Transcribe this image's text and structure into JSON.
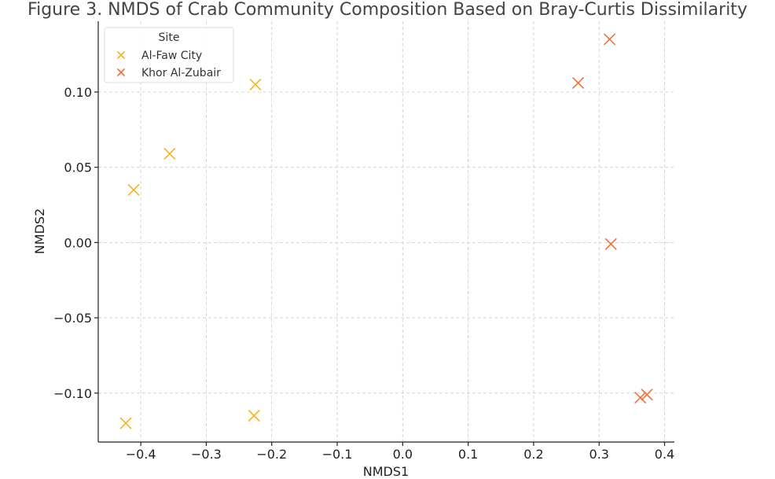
{
  "colors": {
    "al_faw": "#f5b31e",
    "khor": "#e8743b",
    "grid": "#cccccc",
    "axis": "#222222"
  },
  "chart_data": {
    "type": "scatter",
    "title": "Figure 3. NMDS of Crab Community Composition Based on Bray-Curtis Dissimilarity",
    "xlabel": "NMDS1",
    "ylabel": "NMDS2",
    "xlim": [
      -0.465,
      0.415
    ],
    "ylim": [
      -0.1325,
      0.147
    ],
    "xticks": [
      -0.4,
      -0.3,
      -0.2,
      -0.1,
      0.0,
      0.1,
      0.2,
      0.3,
      0.4
    ],
    "xtick_labels": [
      "−0.4",
      "−0.3",
      "−0.2",
      "−0.1",
      "0.0",
      "0.1",
      "0.2",
      "0.3",
      "0.4"
    ],
    "yticks": [
      -0.1,
      -0.05,
      0.0,
      0.05,
      0.1
    ],
    "ytick_labels": [
      "−0.10",
      "−0.05",
      "0.00",
      "0.05",
      "0.10"
    ],
    "grid": true,
    "marker": "x",
    "legend": {
      "title": "Site",
      "placement": "top-left"
    },
    "series": [
      {
        "name": "Al-Faw City",
        "color": "#f5b31e",
        "points": [
          {
            "x": -0.225,
            "y": 0.105
          },
          {
            "x": -0.356,
            "y": 0.059
          },
          {
            "x": -0.411,
            "y": 0.035
          },
          {
            "x": -0.423,
            "y": -0.12
          },
          {
            "x": -0.227,
            "y": -0.115
          }
        ]
      },
      {
        "name": "Khor Al-Zubair",
        "color": "#e8743b",
        "points": [
          {
            "x": 0.316,
            "y": 0.135
          },
          {
            "x": 0.268,
            "y": 0.106
          },
          {
            "x": 0.318,
            "y": -0.001
          },
          {
            "x": 0.373,
            "y": -0.101
          },
          {
            "x": 0.363,
            "y": -0.103
          }
        ]
      }
    ]
  }
}
